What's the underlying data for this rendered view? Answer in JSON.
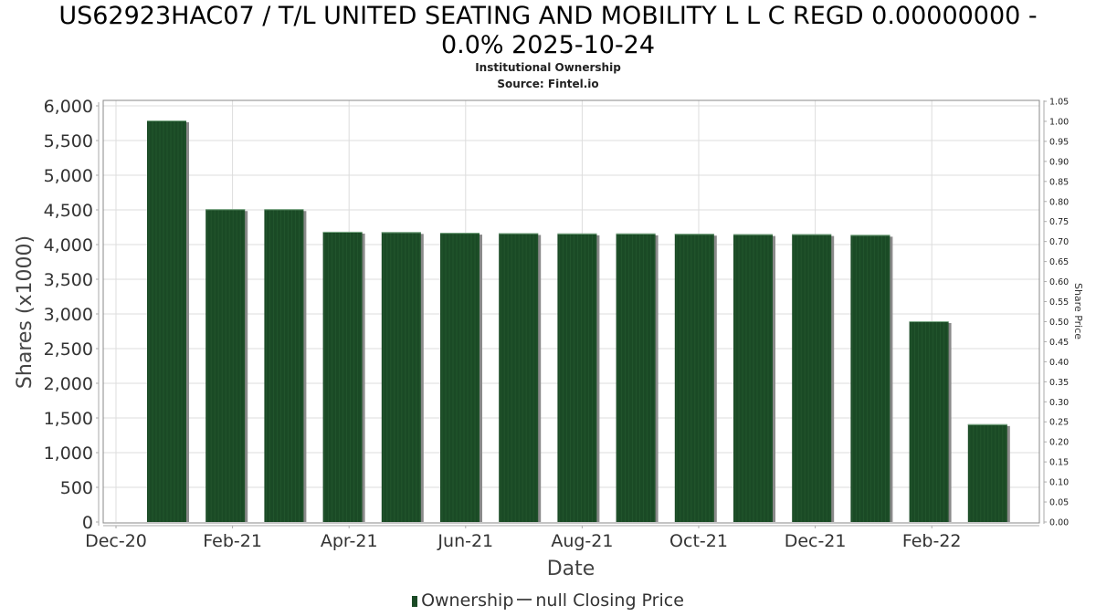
{
  "chart_data": {
    "type": "bar",
    "title": "US62923HAC07 / T/L UNITED SEATING AND MOBILITY L L C REGD 0.00000000 - 0.0% 2025-10-24",
    "title_line1": "US62923HAC07 / T/L UNITED SEATING AND MOBILITY L L C REGD 0.00000000 -",
    "title_line2": "0.0% 2025-10-24",
    "subtitle": "Institutional Ownership",
    "source": "Source: Fintel.io",
    "xlabel": "Date",
    "ylabel": "Shares (x1000)",
    "y2label": "Share Price",
    "ylim": [
      0,
      6000
    ],
    "y2lim": [
      0,
      1.05
    ],
    "yticks": [
      "0",
      "500",
      "1,000",
      "1,500",
      "2,000",
      "2,500",
      "3,000",
      "3,500",
      "4,000",
      "4,500",
      "5,000",
      "5,500",
      "6,000"
    ],
    "y2ticks": [
      "0.00",
      "0.05",
      "0.10",
      "0.15",
      "0.20",
      "0.25",
      "0.30",
      "0.35",
      "0.40",
      "0.45",
      "0.50",
      "0.55",
      "0.60",
      "0.65",
      "0.70",
      "0.75",
      "0.80",
      "0.85",
      "0.90",
      "0.95",
      "1.00",
      "1.05"
    ],
    "xticks": [
      "Dec-20",
      "Feb-21",
      "Apr-21",
      "Jun-21",
      "Aug-21",
      "Oct-21",
      "Dec-21",
      "Feb-22"
    ],
    "grid": true,
    "legend_position": "bottom",
    "series": [
      {
        "name": "Ownership",
        "color": "#1a4a25",
        "values": [
          5790,
          4510,
          4510,
          4185,
          4180,
          4170,
          4165,
          4160,
          4160,
          4155,
          4150,
          4150,
          4140,
          2895,
          1410
        ]
      },
      {
        "name": "null Closing Price",
        "color": "#555555",
        "values": []
      }
    ]
  },
  "legend": {
    "ownership_label": "Ownership",
    "price_label": "null Closing Price"
  }
}
